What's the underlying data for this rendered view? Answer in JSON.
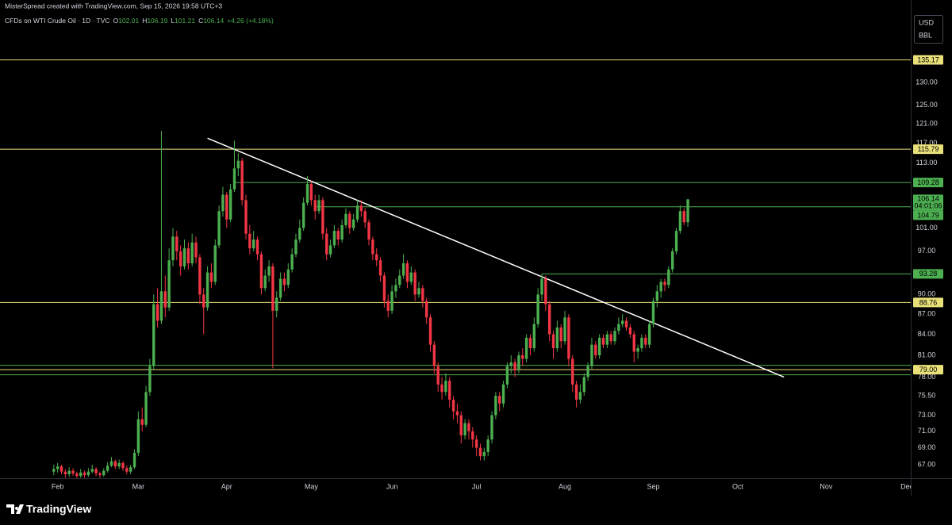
{
  "header": {
    "credit": "MisterSpread created with TradingView.com, Sep 15, 2026 19:58 UTC+3",
    "symbol": "CFDs on WTI Crude Oil · 1D · TVC",
    "ohlc": [
      [
        "O",
        "102.01"
      ],
      [
        "H",
        "106.19"
      ],
      [
        "L",
        "101.21"
      ],
      [
        "C",
        "106.14"
      ]
    ],
    "change": "+4.26 (+4.18%)",
    "currency": "USD",
    "unit": "BBL"
  },
  "footer": {
    "brand": "TradingView"
  },
  "chart_data": {
    "type": "candlestick",
    "up_color": "#4caf50",
    "down_color": "#f23645",
    "log_scale": true,
    "grid": false,
    "xlim": [
      -14,
      223
    ],
    "xticks": [
      {
        "value": 1,
        "label": "Feb"
      },
      {
        "value": 22,
        "label": "Mar"
      },
      {
        "value": 45,
        "label": "Apr"
      },
      {
        "value": 67,
        "label": "May"
      },
      {
        "value": 88,
        "label": "Jun"
      },
      {
        "value": 110,
        "label": "Jul"
      },
      {
        "value": 133,
        "label": "Aug"
      },
      {
        "value": 156,
        "label": "Sep"
      },
      {
        "value": 178,
        "label": "Oct"
      },
      {
        "value": 201,
        "label": "Nov"
      },
      {
        "value": 222,
        "label": "Dec"
      }
    ],
    "ylim": [
      65.45,
      146.3
    ],
    "yticks": [
      {
        "value": 67,
        "label": "67.00"
      },
      {
        "value": 69,
        "label": "69.00"
      },
      {
        "value": 71,
        "label": "71.00"
      },
      {
        "value": 73,
        "label": "73.00"
      },
      {
        "value": 75.5,
        "label": "75.50"
      },
      {
        "value": 78,
        "label": "78.00"
      },
      {
        "value": 81,
        "label": "81.00"
      },
      {
        "value": 84,
        "label": "84.00"
      },
      {
        "value": 87,
        "label": "87.00"
      },
      {
        "value": 90,
        "label": "90.00"
      },
      {
        "value": 97,
        "label": "97.00"
      },
      {
        "value": 101,
        "label": "101.00"
      },
      {
        "value": 113,
        "label": "113.00"
      },
      {
        "value": 117,
        "label": "117.00"
      },
      {
        "value": 121,
        "label": "121.00"
      },
      {
        "value": 125,
        "label": "125.00"
      },
      {
        "value": 130,
        "label": "130.00"
      }
    ],
    "levels": [
      {
        "value": 135.17,
        "label": "135.17",
        "color": "#e9e07a"
      },
      {
        "value": 115.79,
        "label": "115.79",
        "color": "#e9e07a"
      },
      {
        "value": 109.28,
        "label": "109.28",
        "color": "#4caf50",
        "start": 47
      },
      {
        "value": 104.79,
        "label": "104.79",
        "color": "#4caf50",
        "start": 68
      },
      {
        "value": 93.28,
        "label": "93.28",
        "color": "#4caf50",
        "start": 127
      },
      {
        "value": 88.76,
        "label": "88.76",
        "color": "#e9e07a"
      },
      {
        "value": 79.6,
        "color": "#4caf50"
      },
      {
        "value": 79.0,
        "label": "79.00",
        "color": "#e9e07a"
      },
      {
        "value": 78.3,
        "color": "#4caf50"
      }
    ],
    "price_label": {
      "value": 106.14,
      "label": "106.14",
      "countdown": "04:01:06",
      "color": "#4caf50"
    },
    "trendline": {
      "x": [
        40,
        190
      ],
      "y": [
        118.0,
        78.0
      ],
      "color": "#ffffff"
    },
    "ohlc": [
      [
        66.2,
        67.0,
        65.8,
        66.5
      ],
      [
        66.5,
        67.2,
        66.1,
        66.8
      ],
      [
        66.8,
        67.0,
        65.9,
        66.2
      ],
      [
        66.2,
        66.5,
        65.5,
        65.9
      ],
      [
        65.9,
        66.7,
        65.6,
        66.3
      ],
      [
        66.3,
        66.6,
        65.7,
        66.0
      ],
      [
        66.0,
        66.2,
        65.4,
        65.7
      ],
      [
        65.7,
        66.5,
        65.5,
        66.1
      ],
      [
        66.1,
        66.3,
        65.5,
        65.8
      ],
      [
        65.8,
        66.6,
        65.6,
        66.2
      ],
      [
        66.2,
        67.0,
        66.0,
        66.5
      ],
      [
        66.5,
        66.7,
        65.7,
        66.0
      ],
      [
        66.0,
        66.2,
        65.5,
        65.8
      ],
      [
        65.8,
        66.6,
        65.6,
        66.3
      ],
      [
        66.3,
        67.3,
        66.1,
        66.9
      ],
      [
        66.9,
        67.9,
        66.7,
        67.4
      ],
      [
        67.4,
        67.6,
        66.5,
        66.8
      ],
      [
        66.8,
        67.6,
        66.5,
        67.2
      ],
      [
        67.2,
        67.4,
        66.3,
        66.6
      ],
      [
        66.6,
        66.9,
        65.9,
        66.2
      ],
      [
        66.2,
        67.0,
        65.9,
        66.7
      ],
      [
        66.7,
        68.8,
        66.5,
        68.4
      ],
      [
        68.4,
        73.5,
        68.0,
        72.5
      ],
      [
        72.5,
        74.0,
        71.0,
        71.8
      ],
      [
        71.8,
        76.8,
        71.5,
        76.0
      ],
      [
        76.0,
        80.5,
        75.5,
        79.5
      ],
      [
        79.5,
        90.0,
        79.0,
        88.5
      ],
      [
        88.5,
        91.0,
        85.0,
        86.0
      ],
      [
        86.0,
        119.5,
        85.5,
        90.5
      ],
      [
        90.5,
        93.0,
        86.5,
        88.0
      ],
      [
        88.0,
        97.5,
        87.5,
        95.5
      ],
      [
        95.5,
        101.0,
        94.5,
        99.5
      ],
      [
        99.5,
        100.5,
        95.5,
        97.0
      ],
      [
        97.0,
        98.0,
        93.0,
        94.5
      ],
      [
        94.5,
        99.0,
        94.0,
        97.5
      ],
      [
        97.5,
        98.5,
        94.0,
        95.0
      ],
      [
        95.0,
        100.0,
        94.5,
        98.5
      ],
      [
        98.5,
        99.5,
        95.0,
        96.0
      ],
      [
        96.0,
        96.5,
        88.5,
        90.0
      ],
      [
        90.0,
        91.0,
        84.0,
        88.0
      ],
      [
        88.0,
        94.5,
        87.5,
        93.5
      ],
      [
        93.5,
        95.0,
        91.0,
        92.0
      ],
      [
        92.0,
        99.0,
        91.5,
        98.0
      ],
      [
        98.0,
        105.0,
        97.5,
        104.0
      ],
      [
        104.0,
        108.5,
        103.0,
        107.0
      ],
      [
        107.0,
        107.5,
        101.0,
        102.5
      ],
      [
        102.5,
        109.0,
        102.0,
        108.0
      ],
      [
        108.0,
        117.5,
        107.5,
        112.0
      ],
      [
        112.0,
        115.0,
        110.5,
        113.5
      ],
      [
        113.5,
        114.0,
        105.0,
        106.0
      ],
      [
        106.0,
        107.0,
        99.0,
        100.0
      ],
      [
        100.0,
        101.5,
        96.5,
        97.5
      ],
      [
        97.5,
        100.5,
        97.0,
        99.0
      ],
      [
        99.0,
        99.5,
        95.5,
        96.5
      ],
      [
        96.5,
        97.0,
        90.0,
        91.0
      ],
      [
        91.0,
        94.0,
        90.5,
        93.0
      ],
      [
        93.0,
        95.5,
        92.0,
        94.5
      ],
      [
        94.5,
        95.0,
        79.2,
        87.5
      ],
      [
        87.5,
        90.5,
        86.5,
        89.5
      ],
      [
        89.5,
        93.5,
        89.0,
        92.5
      ],
      [
        92.5,
        93.5,
        90.5,
        91.5
      ],
      [
        91.5,
        95.0,
        91.0,
        94.0
      ],
      [
        94.0,
        97.5,
        93.5,
        96.5
      ],
      [
        96.5,
        100.0,
        96.0,
        99.0
      ],
      [
        99.0,
        102.5,
        98.5,
        101.0
      ],
      [
        101.0,
        106.5,
        100.5,
        105.5
      ],
      [
        105.5,
        110.5,
        105.0,
        109.0
      ],
      [
        109.0,
        109.5,
        105.0,
        106.0
      ],
      [
        106.0,
        107.0,
        102.5,
        104.0
      ],
      [
        104.0,
        107.0,
        103.5,
        106.0
      ],
      [
        106.0,
        106.5,
        99.0,
        100.0
      ],
      [
        100.0,
        101.0,
        95.5,
        96.5
      ],
      [
        96.5,
        99.0,
        96.0,
        98.0
      ],
      [
        98.0,
        101.5,
        97.5,
        100.5
      ],
      [
        100.5,
        101.0,
        98.0,
        99.0
      ],
      [
        99.0,
        102.5,
        98.5,
        101.5
      ],
      [
        101.5,
        104.5,
        101.0,
        103.5
      ],
      [
        103.5,
        104.0,
        100.0,
        101.0
      ],
      [
        101.0,
        103.5,
        100.5,
        102.5
      ],
      [
        102.5,
        106.0,
        102.0,
        105.0
      ],
      [
        105.0,
        106.0,
        103.0,
        104.0
      ],
      [
        104.0,
        104.5,
        101.0,
        102.0
      ],
      [
        102.0,
        102.5,
        98.0,
        99.0
      ],
      [
        99.0,
        99.5,
        95.5,
        96.5
      ],
      [
        96.5,
        97.5,
        94.5,
        95.5
      ],
      [
        95.5,
        96.0,
        92.0,
        93.0
      ],
      [
        93.0,
        93.5,
        88.0,
        89.0
      ],
      [
        89.0,
        90.0,
        86.5,
        87.5
      ],
      [
        87.5,
        91.5,
        87.0,
        90.5
      ],
      [
        90.5,
        92.5,
        89.5,
        91.5
      ],
      [
        91.5,
        94.0,
        91.0,
        93.0
      ],
      [
        93.0,
        96.5,
        92.5,
        95.0
      ],
      [
        95.0,
        95.5,
        91.0,
        92.0
      ],
      [
        92.0,
        94.5,
        91.5,
        93.5
      ],
      [
        93.5,
        94.0,
        89.0,
        90.0
      ],
      [
        90.0,
        92.0,
        89.5,
        91.0
      ],
      [
        91.0,
        91.5,
        88.0,
        89.0
      ],
      [
        89.0,
        89.5,
        85.5,
        86.5
      ],
      [
        86.5,
        87.0,
        81.5,
        82.5
      ],
      [
        82.5,
        83.0,
        78.5,
        79.5
      ],
      [
        79.5,
        80.0,
        76.0,
        77.0
      ],
      [
        77.0,
        78.0,
        75.0,
        76.0
      ],
      [
        76.0,
        78.5,
        75.5,
        77.5
      ],
      [
        77.5,
        78.0,
        74.0,
        75.0
      ],
      [
        75.0,
        75.5,
        72.5,
        73.5
      ],
      [
        73.5,
        74.5,
        72.0,
        73.0
      ],
      [
        73.0,
        73.5,
        69.5,
        70.5
      ],
      [
        70.5,
        72.5,
        70.0,
        72.0
      ],
      [
        72.0,
        72.5,
        70.0,
        71.0
      ],
      [
        71.0,
        71.5,
        69.0,
        70.0
      ],
      [
        70.0,
        70.5,
        68.0,
        69.0
      ],
      [
        69.0,
        69.5,
        67.5,
        68.0
      ],
      [
        68.0,
        69.0,
        67.5,
        68.5
      ],
      [
        68.5,
        70.5,
        68.0,
        70.0
      ],
      [
        70.0,
        73.5,
        69.5,
        73.0
      ],
      [
        73.0,
        76.0,
        72.5,
        75.5
      ],
      [
        75.5,
        76.0,
        73.5,
        74.5
      ],
      [
        74.5,
        77.5,
        74.0,
        77.0
      ],
      [
        77.0,
        80.0,
        76.5,
        79.5
      ],
      [
        79.5,
        81.0,
        78.5,
        80.0
      ],
      [
        80.0,
        80.5,
        78.0,
        79.0
      ],
      [
        79.0,
        81.5,
        78.5,
        81.0
      ],
      [
        81.0,
        82.0,
        79.5,
        80.5
      ],
      [
        80.5,
        84.0,
        80.0,
        83.5
      ],
      [
        83.5,
        84.0,
        81.0,
        82.0
      ],
      [
        82.0,
        86.5,
        81.5,
        85.5
      ],
      [
        85.5,
        91.0,
        85.0,
        90.0
      ],
      [
        90.0,
        93.3,
        89.0,
        92.5
      ],
      [
        92.5,
        93.0,
        87.5,
        88.5
      ],
      [
        88.5,
        89.0,
        83.0,
        84.0
      ],
      [
        84.0,
        84.5,
        80.5,
        82.0
      ],
      [
        82.0,
        86.0,
        81.5,
        85.0
      ],
      [
        85.0,
        85.5,
        82.0,
        83.0
      ],
      [
        83.0,
        87.5,
        82.5,
        86.5
      ],
      [
        86.5,
        87.0,
        79.5,
        80.5
      ],
      [
        80.5,
        81.0,
        76.0,
        77.0
      ],
      [
        77.0,
        77.5,
        74.0,
        75.0
      ],
      [
        75.0,
        77.0,
        74.5,
        76.0
      ],
      [
        76.0,
        78.5,
        75.5,
        78.0
      ],
      [
        78.0,
        80.0,
        77.5,
        79.5
      ],
      [
        79.5,
        83.5,
        79.0,
        82.5
      ],
      [
        82.5,
        83.0,
        80.5,
        81.0
      ],
      [
        81.0,
        84.0,
        80.5,
        83.5
      ],
      [
        83.5,
        84.0,
        82.0,
        82.5
      ],
      [
        82.5,
        84.5,
        82.0,
        84.0
      ],
      [
        84.0,
        84.5,
        82.5,
        83.0
      ],
      [
        83.0,
        85.0,
        82.5,
        84.5
      ],
      [
        84.5,
        86.5,
        84.0,
        85.5
      ],
      [
        85.5,
        87.0,
        85.0,
        86.0
      ],
      [
        86.0,
        86.5,
        84.5,
        85.0
      ],
      [
        85.0,
        85.5,
        83.5,
        84.0
      ],
      [
        84.0,
        84.5,
        80.0,
        81.5
      ],
      [
        81.5,
        82.5,
        80.5,
        82.0
      ],
      [
        82.0,
        84.0,
        81.5,
        83.5
      ],
      [
        83.5,
        84.0,
        82.0,
        82.5
      ],
      [
        82.5,
        86.0,
        82.0,
        85.5
      ],
      [
        85.5,
        89.5,
        85.0,
        89.0
      ],
      [
        89.0,
        91.5,
        88.0,
        90.5
      ],
      [
        90.5,
        92.5,
        89.5,
        92.0
      ],
      [
        92.0,
        92.5,
        90.5,
        91.5
      ],
      [
        91.5,
        94.5,
        91.0,
        94.0
      ],
      [
        94.0,
        97.5,
        93.5,
        97.0
      ],
      [
        97.0,
        101.0,
        96.5,
        100.5
      ],
      [
        100.5,
        105.0,
        100.0,
        104.0
      ],
      [
        104.0,
        104.5,
        101.5,
        102.0
      ],
      [
        102.01,
        106.19,
        101.21,
        106.14
      ]
    ]
  }
}
